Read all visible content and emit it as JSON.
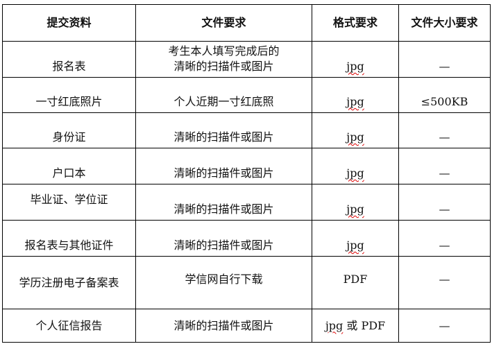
{
  "headers": [
    "提交资料",
    "文件要求",
    "格式要求",
    "文件大小要求"
  ],
  "rows": [
    {
      "item": "报名表",
      "req": "考生本人填写完成后的清晰的扫描件或图片",
      "format": "jpg",
      "size": "—"
    },
    {
      "item": "一寸红底照片",
      "req": "个人近期一寸红底照",
      "format": "jpg",
      "size": "≤500KB"
    },
    {
      "item": "身份证",
      "req": "清晰的扫描件或图片",
      "format": "jpg",
      "size": "—"
    },
    {
      "item": "户口本",
      "req": "清晰的扫描件或图片",
      "format": "jpg",
      "size": "—"
    },
    {
      "item": "毕业证、学位证",
      "req": "清晰的扫描件或图片",
      "format": "jpg",
      "size": "—"
    },
    {
      "item": "报名表与其他证件",
      "req": "清晰的扫描件或图片",
      "format": "jpg",
      "size": "—"
    },
    {
      "item": "学历注册电子备案表",
      "req": "学信网自行下载",
      "format": "PDF",
      "size": "—"
    },
    {
      "item": "个人征信报告",
      "req": "清晰的扫描件或图片",
      "format_jpg": "jpg",
      "format_rest": " 或 PDF",
      "size": "—"
    }
  ]
}
